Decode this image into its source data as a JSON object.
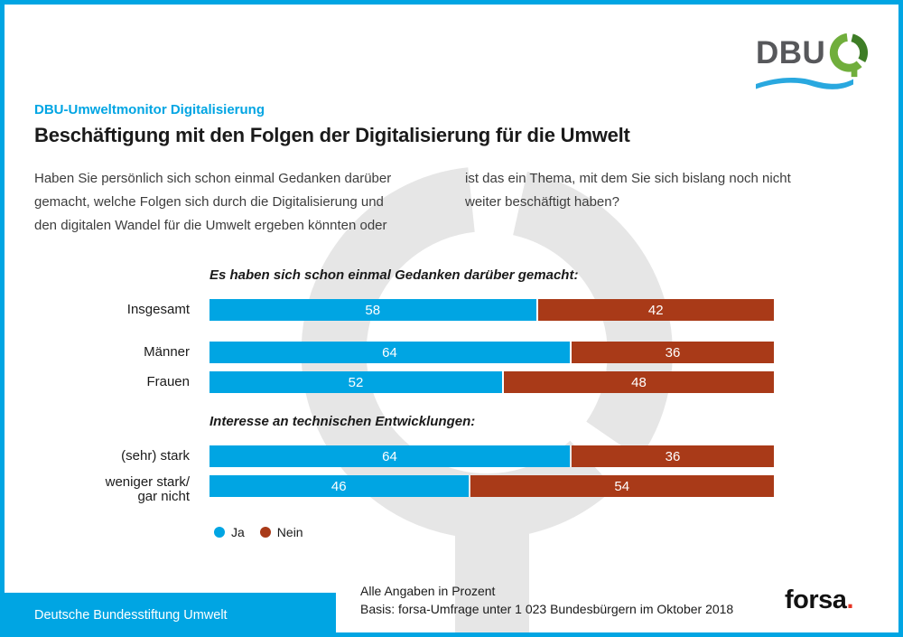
{
  "brand": {
    "dbu_text": "DBU",
    "forsa_text": "forsa",
    "forsa_dot": ".",
    "banner_text": "Deutsche Bundesstiftung Umwelt",
    "accent_blue": "#00A5E3",
    "accent_red": "#A93A18",
    "logo_green_light": "#70AE3C",
    "logo_green_dark": "#3E7D26",
    "watermark_gray": "#E6E6E6"
  },
  "header": {
    "kicker": "DBU-Umweltmonitor Digitalisierung",
    "title": "Beschäftigung mit den Folgen der Digitalisierung für die Umwelt"
  },
  "question": {
    "left_lines": [
      "Haben Sie persönlich sich schon einmal Gedanken darüber",
      "gemacht, welche Folgen sich durch die Digitalisierung und",
      "den digitalen Wandel für die Umwelt ergeben könnten oder"
    ],
    "right_lines": [
      "ist das ein Thema, mit dem Sie sich bislang noch nicht",
      "weiter beschäftigt haben?"
    ]
  },
  "chart_data": {
    "type": "bar",
    "orientation": "horizontal",
    "stacked": true,
    "unit": "Prozent",
    "xlim": [
      0,
      100
    ],
    "legend_position": "bottom-left",
    "series_names": [
      "Ja",
      "Nein"
    ],
    "colors": {
      "ja": "#00A5E3",
      "nein": "#A93A18"
    },
    "groups": [
      {
        "section_label": "Es haben sich schon einmal Gedanken darüber gemacht:",
        "rows": [
          {
            "label_lines": [
              "Insgesamt"
            ],
            "ja": 58,
            "nein": 42
          }
        ]
      },
      {
        "section_label": "",
        "rows": [
          {
            "label_lines": [
              "Männer"
            ],
            "ja": 64,
            "nein": 36
          },
          {
            "label_lines": [
              "Frauen"
            ],
            "ja": 52,
            "nein": 48
          }
        ]
      },
      {
        "section_label": "Interesse an technischen Entwicklungen:",
        "rows": [
          {
            "label_lines": [
              "(sehr) stark"
            ],
            "ja": 64,
            "nein": 36
          },
          {
            "label_lines": [
              "weniger stark/",
              "gar nicht"
            ],
            "ja": 46,
            "nein": 54
          }
        ]
      }
    ]
  },
  "legend": {
    "ja": "Ja",
    "nein": "Nein"
  },
  "footer": {
    "note_line1": "Alle Angaben in Prozent",
    "note_line2": "Basis: forsa-Umfrage unter 1 023 Bundesbürgern im Oktober 2018"
  }
}
